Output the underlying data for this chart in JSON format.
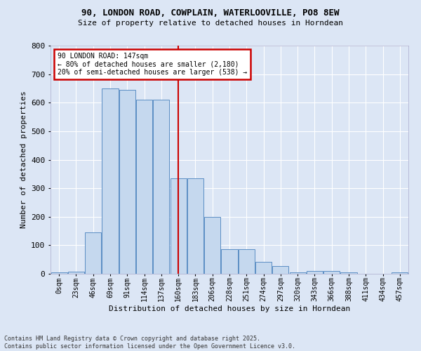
{
  "title_line1": "90, LONDON ROAD, COWPLAIN, WATERLOOVILLE, PO8 8EW",
  "title_line2": "Size of property relative to detached houses in Horndean",
  "xlabel": "Distribution of detached houses by size in Horndean",
  "ylabel": "Number of detached properties",
  "bin_labels": [
    "0sqm",
    "23sqm",
    "46sqm",
    "69sqm",
    "91sqm",
    "114sqm",
    "137sqm",
    "160sqm",
    "183sqm",
    "206sqm",
    "228sqm",
    "251sqm",
    "274sqm",
    "297sqm",
    "320sqm",
    "343sqm",
    "366sqm",
    "388sqm",
    "411sqm",
    "434sqm",
    "457sqm"
  ],
  "bar_heights": [
    5,
    8,
    145,
    650,
    645,
    610,
    610,
    335,
    335,
    200,
    85,
    85,
    42,
    27,
    5,
    10,
    10,
    5,
    0,
    0,
    5
  ],
  "bar_color": "#c5d8ee",
  "bar_edge_color": "#5b8ec4",
  "bg_color": "#dce6f5",
  "grid_color": "#ffffff",
  "vline_x": 7.0,
  "vline_color": "#cc0000",
  "annotation_title": "90 LONDON ROAD: 147sqm",
  "annotation_line1": "← 80% of detached houses are smaller (2,180)",
  "annotation_line2": "20% of semi-detached houses are larger (538) →",
  "annotation_box_color": "#cc0000",
  "footer_line1": "Contains HM Land Registry data © Crown copyright and database right 2025.",
  "footer_line2": "Contains public sector information licensed under the Open Government Licence v3.0.",
  "ylim": [
    0,
    800
  ],
  "yticks": [
    0,
    100,
    200,
    300,
    400,
    500,
    600,
    700,
    800
  ]
}
